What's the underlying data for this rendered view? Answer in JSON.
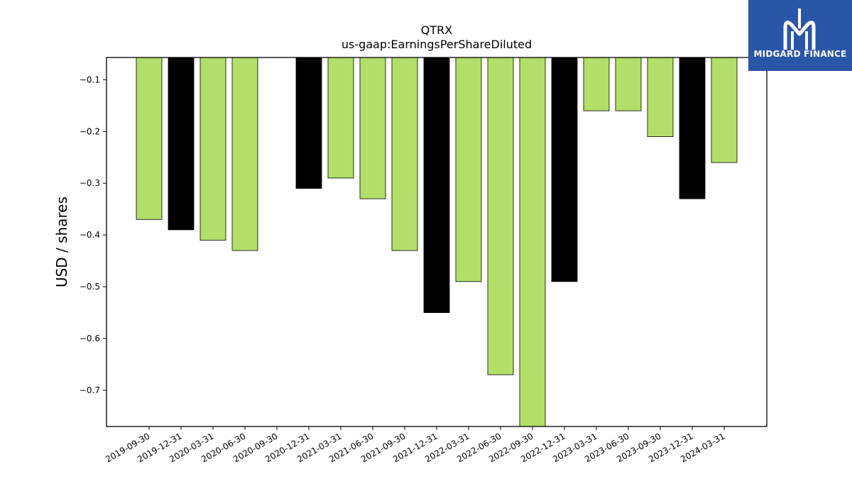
{
  "chart_data": {
    "type": "bar",
    "title": "QTRX",
    "subtitle": "us-gaap:EarningsPerShareDiluted",
    "xlabel": "",
    "ylabel": "USD / shares",
    "categories": [
      "2019-09-30",
      "2019-12-31",
      "2020-03-31",
      "2020-06-30",
      "2020-09-30",
      "2020-12-31",
      "2021-03-31",
      "2021-06-30",
      "2021-09-30",
      "2021-12-31",
      "2022-03-31",
      "2022-06-30",
      "2022-09-30",
      "2022-12-31",
      "2023-03-31",
      "2023-06-30",
      "2023-09-30",
      "2023-12-31",
      "2024-03-31"
    ],
    "values": [
      -0.37,
      -0.39,
      -0.41,
      -0.43,
      null,
      -0.31,
      -0.29,
      -0.33,
      -0.43,
      -0.55,
      -0.49,
      -0.67,
      -0.77,
      -0.49,
      -0.16,
      -0.16,
      -0.21,
      -0.33,
      -0.26
    ],
    "quarter_type": [
      "Q",
      "FY",
      "Q",
      "Q",
      "Q",
      "FY",
      "Q",
      "Q",
      "Q",
      "FY",
      "Q",
      "Q",
      "Q",
      "FY",
      "Q",
      "Q",
      "Q",
      "FY",
      "Q"
    ],
    "bar_colors": {
      "Q": "#b3de69",
      "FY": "#000000"
    },
    "ylim": [
      -0.77,
      -0.057
    ],
    "yticks": [
      -0.1,
      -0.2,
      -0.3,
      -0.4,
      -0.5,
      -0.6,
      -0.7
    ],
    "ytick_labels": [
      "−0.1",
      "−0.2",
      "−0.3",
      "−0.4",
      "−0.5",
      "−0.6",
      "−0.7"
    ],
    "grid": false,
    "legend": "none"
  },
  "logo": {
    "text": "MIDGARD FINANCE",
    "background": "#2a56a8",
    "icon": "midgard-m-logo-icon"
  }
}
